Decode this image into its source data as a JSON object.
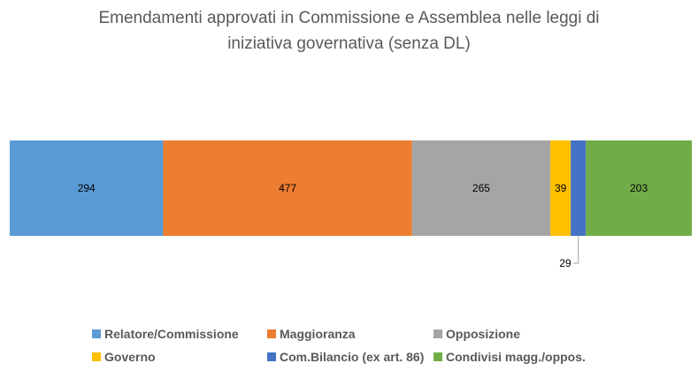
{
  "chart_data": {
    "type": "bar",
    "orientation": "horizontal",
    "stacked": true,
    "title_lines": [
      "Emendamenti approvati in Commissione e Assemblea nelle leggi di",
      "iniziativa governativa (senza DL)"
    ],
    "series": [
      {
        "name": "Relatore/Commissione",
        "values": [
          294
        ],
        "color": "#5B9BD5"
      },
      {
        "name": "Maggioranza",
        "values": [
          477
        ],
        "color": "#ED7D31"
      },
      {
        "name": "Opposizione",
        "values": [
          265
        ],
        "color": "#A5A5A5"
      },
      {
        "name": "Governo",
        "values": [
          39
        ],
        "color": "#FFC000"
      },
      {
        "name": "Com.Bilancio (ex art. 86)",
        "values": [
          29
        ],
        "color": "#4472C4"
      },
      {
        "name": "Condivisi magg./oppos.",
        "values": [
          203
        ],
        "color": "#70AD47"
      }
    ],
    "xlim": [
      0,
      1307
    ],
    "grid": false,
    "legend_position": "bottom"
  }
}
